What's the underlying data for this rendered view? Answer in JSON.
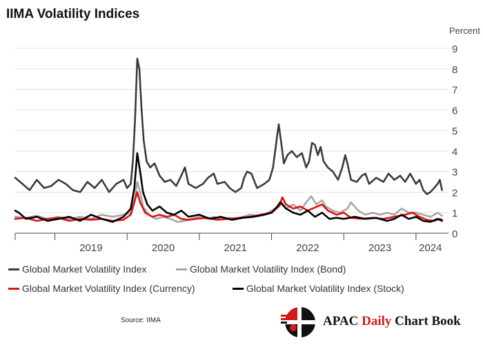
{
  "title": "IIMA Volatility Indices",
  "unit_label": "Percent",
  "source": "Source: IIMA",
  "brand": {
    "prefix": "APAC ",
    "accent": "Daily",
    "suffix": " Chart Book"
  },
  "colors": {
    "grid": "#e2e2e2",
    "axis": "#444444"
  },
  "chart_data": {
    "type": "line",
    "title": "IIMA Volatility Indices",
    "ylabel": "Percent",
    "xlabel": "",
    "x_range": [
      2018.45,
      2024.45
    ],
    "ylim": [
      0,
      9
    ],
    "y_ticks": [
      0,
      1,
      2,
      3,
      4,
      5,
      6,
      7,
      8,
      9
    ],
    "x_tick_positions": [
      2019,
      2020,
      2021,
      2022,
      2023,
      2024
    ],
    "x_label_positions": [
      2019.5,
      2020.5,
      2021.5,
      2022.5,
      2023.5,
      2024.2
    ],
    "x_tick_labels": [
      "2019",
      "2020",
      "2021",
      "2022",
      "2023",
      "2024"
    ],
    "grid": true,
    "legend_position": "bottom",
    "series": [
      {
        "name": "Global Market Volatility Index",
        "color": "#3a3a3a",
        "points": [
          [
            2018.45,
            2.7
          ],
          [
            2018.55,
            2.4
          ],
          [
            2018.65,
            2.1
          ],
          [
            2018.75,
            2.6
          ],
          [
            2018.85,
            2.2
          ],
          [
            2018.95,
            2.3
          ],
          [
            2019.05,
            2.6
          ],
          [
            2019.15,
            2.4
          ],
          [
            2019.25,
            2.1
          ],
          [
            2019.35,
            2.0
          ],
          [
            2019.45,
            2.5
          ],
          [
            2019.55,
            2.2
          ],
          [
            2019.65,
            2.6
          ],
          [
            2019.75,
            2.0
          ],
          [
            2019.85,
            2.4
          ],
          [
            2019.95,
            2.6
          ],
          [
            2020.0,
            2.2
          ],
          [
            2020.05,
            2.4
          ],
          [
            2020.08,
            3.5
          ],
          [
            2020.11,
            5.5
          ],
          [
            2020.14,
            8.5
          ],
          [
            2020.17,
            8.0
          ],
          [
            2020.2,
            6.0
          ],
          [
            2020.23,
            4.5
          ],
          [
            2020.27,
            3.5
          ],
          [
            2020.32,
            3.2
          ],
          [
            2020.38,
            3.4
          ],
          [
            2020.45,
            2.8
          ],
          [
            2020.52,
            2.5
          ],
          [
            2020.6,
            2.6
          ],
          [
            2020.68,
            2.3
          ],
          [
            2020.75,
            2.8
          ],
          [
            2020.8,
            3.2
          ],
          [
            2020.85,
            2.4
          ],
          [
            2020.95,
            2.2
          ],
          [
            2021.05,
            2.4
          ],
          [
            2021.12,
            2.7
          ],
          [
            2021.2,
            2.9
          ],
          [
            2021.25,
            2.4
          ],
          [
            2021.35,
            2.5
          ],
          [
            2021.42,
            2.2
          ],
          [
            2021.5,
            2.0
          ],
          [
            2021.58,
            2.2
          ],
          [
            2021.62,
            2.7
          ],
          [
            2021.66,
            3.0
          ],
          [
            2021.72,
            2.9
          ],
          [
            2021.8,
            2.2
          ],
          [
            2021.9,
            2.4
          ],
          [
            2021.97,
            2.6
          ],
          [
            2022.02,
            3.2
          ],
          [
            2022.05,
            4.0
          ],
          [
            2022.08,
            4.8
          ],
          [
            2022.1,
            5.3
          ],
          [
            2022.13,
            4.5
          ],
          [
            2022.17,
            3.4
          ],
          [
            2022.22,
            3.8
          ],
          [
            2022.28,
            4.0
          ],
          [
            2022.35,
            3.7
          ],
          [
            2022.42,
            3.9
          ],
          [
            2022.48,
            3.2
          ],
          [
            2022.52,
            3.5
          ],
          [
            2022.56,
            4.4
          ],
          [
            2022.6,
            4.3
          ],
          [
            2022.64,
            3.8
          ],
          [
            2022.68,
            4.2
          ],
          [
            2022.72,
            3.5
          ],
          [
            2022.78,
            3.2
          ],
          [
            2022.85,
            3.0
          ],
          [
            2022.92,
            2.6
          ],
          [
            2022.98,
            3.2
          ],
          [
            2023.02,
            3.8
          ],
          [
            2023.05,
            3.4
          ],
          [
            2023.1,
            2.6
          ],
          [
            2023.18,
            2.5
          ],
          [
            2023.25,
            2.8
          ],
          [
            2023.3,
            2.9
          ],
          [
            2023.35,
            2.4
          ],
          [
            2023.45,
            2.7
          ],
          [
            2023.55,
            2.5
          ],
          [
            2023.62,
            2.9
          ],
          [
            2023.7,
            2.6
          ],
          [
            2023.78,
            2.8
          ],
          [
            2023.85,
            2.5
          ],
          [
            2023.92,
            2.9
          ],
          [
            2024.0,
            2.4
          ],
          [
            2024.05,
            2.6
          ],
          [
            2024.1,
            2.1
          ],
          [
            2024.15,
            1.9
          ],
          [
            2024.2,
            2.0
          ],
          [
            2024.25,
            2.2
          ],
          [
            2024.3,
            2.4
          ],
          [
            2024.33,
            2.6
          ],
          [
            2024.36,
            2.1
          ]
        ]
      },
      {
        "name": "Global Market Volatility Index (Bond)",
        "color": "#a6a6a6",
        "points": [
          [
            2018.45,
            0.8
          ],
          [
            2018.6,
            0.75
          ],
          [
            2018.75,
            0.85
          ],
          [
            2018.9,
            0.7
          ],
          [
            2019.05,
            0.8
          ],
          [
            2019.2,
            0.7
          ],
          [
            2019.35,
            0.8
          ],
          [
            2019.5,
            0.7
          ],
          [
            2019.65,
            0.9
          ],
          [
            2019.8,
            0.8
          ],
          [
            2019.95,
            0.9
          ],
          [
            2020.05,
            1.0
          ],
          [
            2020.1,
            1.6
          ],
          [
            2020.14,
            2.5
          ],
          [
            2020.18,
            2.0
          ],
          [
            2020.22,
            1.3
          ],
          [
            2020.3,
            0.9
          ],
          [
            2020.4,
            0.7
          ],
          [
            2020.5,
            0.8
          ],
          [
            2020.6,
            0.7
          ],
          [
            2020.7,
            0.55
          ],
          [
            2020.8,
            0.6
          ],
          [
            2020.9,
            0.7
          ],
          [
            2021.0,
            0.8
          ],
          [
            2021.1,
            0.7
          ],
          [
            2021.2,
            0.8
          ],
          [
            2021.3,
            0.7
          ],
          [
            2021.4,
            0.75
          ],
          [
            2021.5,
            0.7
          ],
          [
            2021.6,
            0.8
          ],
          [
            2021.7,
            0.9
          ],
          [
            2021.8,
            0.85
          ],
          [
            2021.9,
            0.9
          ],
          [
            2022.0,
            1.1
          ],
          [
            2022.1,
            1.3
          ],
          [
            2022.15,
            1.5
          ],
          [
            2022.2,
            1.2
          ],
          [
            2022.3,
            1.4
          ],
          [
            2022.4,
            1.1
          ],
          [
            2022.48,
            1.5
          ],
          [
            2022.55,
            1.8
          ],
          [
            2022.62,
            1.4
          ],
          [
            2022.7,
            1.6
          ],
          [
            2022.75,
            1.3
          ],
          [
            2022.85,
            1.1
          ],
          [
            2022.95,
            1.0
          ],
          [
            2023.05,
            1.2
          ],
          [
            2023.1,
            1.5
          ],
          [
            2023.2,
            1.1
          ],
          [
            2023.3,
            0.9
          ],
          [
            2023.4,
            1.0
          ],
          [
            2023.5,
            0.9
          ],
          [
            2023.6,
            1.0
          ],
          [
            2023.7,
            0.9
          ],
          [
            2023.8,
            1.2
          ],
          [
            2023.9,
            1.0
          ],
          [
            2024.0,
            1.0
          ],
          [
            2024.1,
            0.9
          ],
          [
            2024.2,
            0.8
          ],
          [
            2024.3,
            1.0
          ],
          [
            2024.36,
            0.85
          ]
        ]
      },
      {
        "name": "Global Market Volatility Index (Currency)",
        "color": "#e01010",
        "points": [
          [
            2018.45,
            0.7
          ],
          [
            2018.6,
            0.75
          ],
          [
            2018.75,
            0.6
          ],
          [
            2018.9,
            0.7
          ],
          [
            2019.05,
            0.75
          ],
          [
            2019.2,
            0.6
          ],
          [
            2019.35,
            0.7
          ],
          [
            2019.5,
            0.65
          ],
          [
            2019.65,
            0.7
          ],
          [
            2019.8,
            0.6
          ],
          [
            2019.95,
            0.65
          ],
          [
            2020.05,
            0.9
          ],
          [
            2020.1,
            1.5
          ],
          [
            2020.14,
            2.0
          ],
          [
            2020.18,
            1.5
          ],
          [
            2020.25,
            1.0
          ],
          [
            2020.35,
            0.8
          ],
          [
            2020.45,
            0.9
          ],
          [
            2020.55,
            0.8
          ],
          [
            2020.65,
            0.9
          ],
          [
            2020.75,
            0.7
          ],
          [
            2020.85,
            0.65
          ],
          [
            2020.95,
            0.7
          ],
          [
            2021.1,
            0.75
          ],
          [
            2021.25,
            0.65
          ],
          [
            2021.4,
            0.7
          ],
          [
            2021.55,
            0.75
          ],
          [
            2021.7,
            0.8
          ],
          [
            2021.85,
            0.9
          ],
          [
            2022.0,
            1.0
          ],
          [
            2022.1,
            1.3
          ],
          [
            2022.15,
            1.75
          ],
          [
            2022.2,
            1.4
          ],
          [
            2022.3,
            1.2
          ],
          [
            2022.4,
            1.3
          ],
          [
            2022.5,
            1.1
          ],
          [
            2022.6,
            1.25
          ],
          [
            2022.7,
            1.4
          ],
          [
            2022.78,
            1.1
          ],
          [
            2022.9,
            0.9
          ],
          [
            2023.0,
            1.0
          ],
          [
            2023.1,
            0.75
          ],
          [
            2023.25,
            0.7
          ],
          [
            2023.4,
            0.75
          ],
          [
            2023.55,
            0.7
          ],
          [
            2023.7,
            0.8
          ],
          [
            2023.85,
            0.9
          ],
          [
            2023.95,
            1.0
          ],
          [
            2024.05,
            0.8
          ],
          [
            2024.15,
            0.65
          ],
          [
            2024.25,
            0.6
          ],
          [
            2024.33,
            0.7
          ],
          [
            2024.36,
            0.65
          ]
        ]
      },
      {
        "name": "Global Market Volatility Index (Stock)",
        "color": "#000000",
        "points": [
          [
            2018.45,
            1.1
          ],
          [
            2018.5,
            1.0
          ],
          [
            2018.6,
            0.7
          ],
          [
            2018.75,
            0.8
          ],
          [
            2018.9,
            0.6
          ],
          [
            2019.05,
            0.7
          ],
          [
            2019.2,
            0.8
          ],
          [
            2019.35,
            0.6
          ],
          [
            2019.5,
            0.9
          ],
          [
            2019.65,
            0.7
          ],
          [
            2019.8,
            0.55
          ],
          [
            2019.95,
            0.8
          ],
          [
            2020.05,
            1.2
          ],
          [
            2020.1,
            2.2
          ],
          [
            2020.14,
            3.9
          ],
          [
            2020.18,
            3.0
          ],
          [
            2020.22,
            2.0
          ],
          [
            2020.28,
            1.4
          ],
          [
            2020.35,
            1.1
          ],
          [
            2020.45,
            1.3
          ],
          [
            2020.55,
            1.0
          ],
          [
            2020.65,
            0.9
          ],
          [
            2020.75,
            1.1
          ],
          [
            2020.85,
            0.8
          ],
          [
            2021.0,
            0.9
          ],
          [
            2021.15,
            0.7
          ],
          [
            2021.3,
            0.8
          ],
          [
            2021.45,
            0.65
          ],
          [
            2021.6,
            0.75
          ],
          [
            2021.75,
            0.8
          ],
          [
            2021.9,
            0.9
          ],
          [
            2022.0,
            1.0
          ],
          [
            2022.08,
            1.3
          ],
          [
            2022.12,
            1.5
          ],
          [
            2022.2,
            1.2
          ],
          [
            2022.3,
            1.0
          ],
          [
            2022.4,
            0.9
          ],
          [
            2022.5,
            1.1
          ],
          [
            2022.6,
            0.8
          ],
          [
            2022.7,
            1.0
          ],
          [
            2022.8,
            0.7
          ],
          [
            2022.9,
            0.75
          ],
          [
            2023.0,
            0.7
          ],
          [
            2023.15,
            0.8
          ],
          [
            2023.3,
            0.7
          ],
          [
            2023.45,
            0.75
          ],
          [
            2023.6,
            0.6
          ],
          [
            2023.7,
            0.7
          ],
          [
            2023.8,
            0.9
          ],
          [
            2023.9,
            0.7
          ],
          [
            2024.0,
            0.8
          ],
          [
            2024.1,
            0.6
          ],
          [
            2024.2,
            0.55
          ],
          [
            2024.3,
            0.7
          ],
          [
            2024.36,
            0.6
          ]
        ]
      }
    ]
  }
}
